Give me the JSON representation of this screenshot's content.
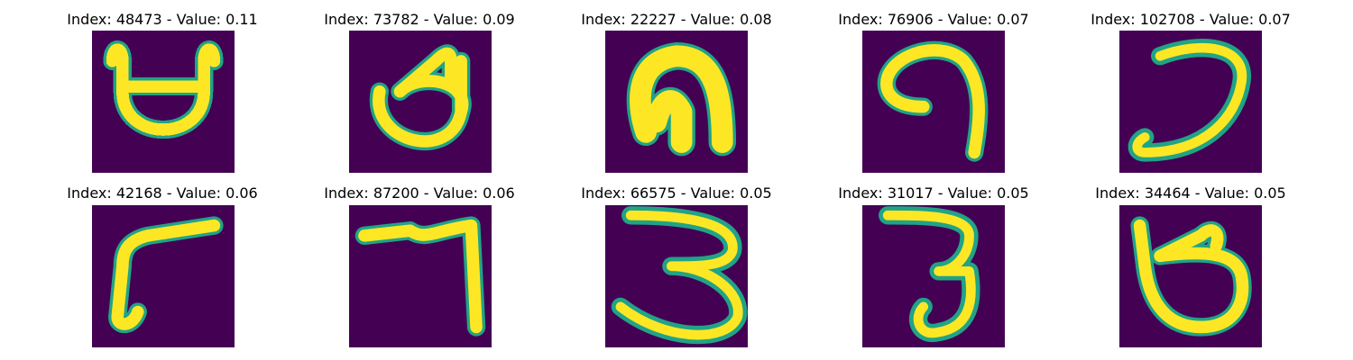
{
  "colors": {
    "background": "#440154",
    "stroke_core": "#fde725",
    "stroke_edge": "#21a386"
  },
  "panels": [
    {
      "title": "Index: 48473 - Value: 0.11",
      "glyph": "gamma-open-loop"
    },
    {
      "title": "Index: 73782 - Value: 0.09",
      "glyph": "d-shape"
    },
    {
      "title": "Index: 22227 - Value: 0.08",
      "glyph": "arch"
    },
    {
      "title": "Index: 76906 - Value: 0.07",
      "glyph": "curl"
    },
    {
      "title": "Index: 102708 - Value: 0.07",
      "glyph": "reversed-c"
    },
    {
      "title": "Index: 42168 - Value: 0.06",
      "glyph": "l-turn"
    },
    {
      "title": "Index: 87200 - Value: 0.06",
      "glyph": "seven"
    },
    {
      "title": "Index: 66575 - Value: 0.05",
      "glyph": "three"
    },
    {
      "title": "Index: 31017 - Value: 0.05",
      "glyph": "three-narrow"
    },
    {
      "title": "Index: 34464 - Value: 0.05",
      "glyph": "loop"
    }
  ]
}
